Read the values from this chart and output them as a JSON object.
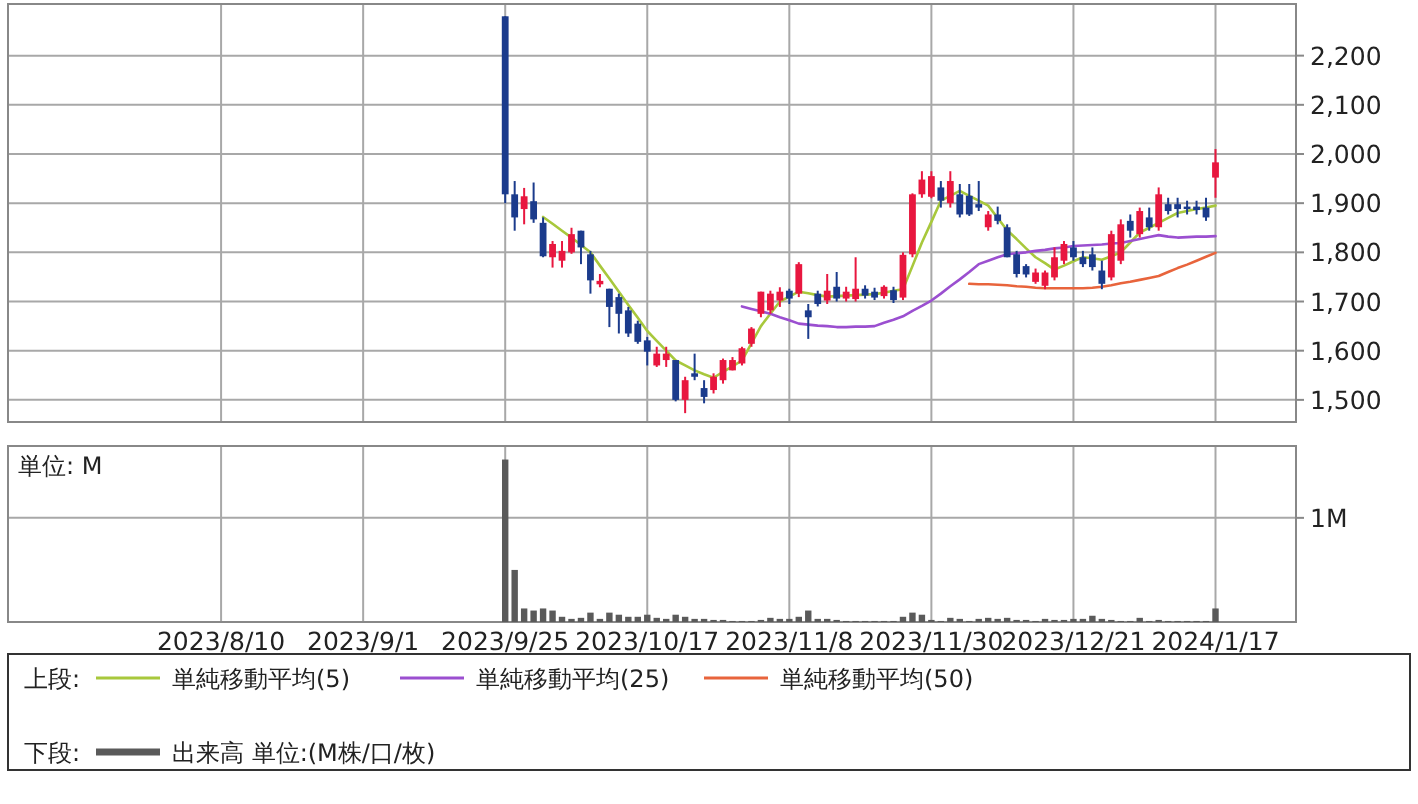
{
  "chart_data": [
    {
      "type": "candlestick",
      "legend": "bottom",
      "legend_title": "上段:",
      "grid": true,
      "categories": [
        null,
        null,
        null,
        null,
        null,
        null,
        null,
        null,
        null,
        null,
        null,
        null,
        null,
        null,
        null,
        null,
        null,
        null,
        null,
        null,
        null,
        null,
        null,
        null,
        null,
        null,
        null,
        null,
        null,
        null,
        null,
        null,
        null,
        null,
        null,
        null,
        null,
        null,
        null,
        null,
        null,
        null,
        null,
        null,
        null,
        null,
        null,
        null,
        null,
        null,
        null,
        null,
        null,
        null,
        null,
        null,
        null,
        null,
        null,
        null,
        null,
        null,
        null,
        null,
        null,
        null,
        null,
        null,
        null,
        null,
        null,
        null,
        null,
        null,
        null,
        null,
        null,
        null,
        null,
        null,
        null,
        null,
        null,
        null,
        null,
        null,
        null,
        null,
        null,
        null,
        null,
        null,
        null,
        null,
        null,
        null,
        null,
        null,
        null,
        null,
        null,
        null,
        null,
        null,
        null,
        null,
        null,
        null,
        null,
        null,
        null,
        null,
        null,
        null,
        null,
        null,
        null,
        null,
        null,
        null,
        null,
        null,
        null,
        null,
        null,
        null,
        null,
        null,
        null,
        null,
        null,
        null,
        null,
        null,
        null,
        null
      ],
      "ohlc": [
        null,
        null,
        null,
        null,
        null,
        null,
        null,
        null,
        null,
        null,
        null,
        null,
        null,
        null,
        null,
        null,
        null,
        null,
        null,
        null,
        null,
        null,
        null,
        null,
        null,
        null,
        null,
        null,
        null,
        null,
        null,
        null,
        null,
        null,
        null,
        null,
        null,
        null,
        null,
        null,
        null,
        null,
        null,
        null,
        null,
        null,
        null,
        null,
        null,
        null,
        null,
        null,
        [
          2280,
          2280,
          1900,
          1918
        ],
        [
          1918,
          1945,
          1844,
          1871
        ],
        [
          1888,
          1931,
          1857,
          1914
        ],
        [
          1904,
          1942,
          1860,
          1867
        ],
        [
          1860,
          1871,
          1790,
          1792
        ],
        [
          1790,
          1823,
          1769,
          1817
        ],
        [
          1783,
          1823,
          1769,
          1803
        ],
        [
          1800,
          1850,
          1797,
          1837
        ],
        [
          1844,
          1844,
          1776,
          1810
        ],
        [
          1796,
          1803,
          1716,
          1743
        ],
        [
          1735,
          1756,
          1729,
          1742
        ],
        [
          1726,
          1726,
          1648,
          1689
        ],
        [
          1709,
          1716,
          1635,
          1675
        ],
        [
          1682,
          1689,
          1628,
          1635
        ],
        [
          1655,
          1661,
          1614,
          1618
        ],
        [
          1621,
          1628,
          1570,
          1598
        ],
        [
          1570,
          1608,
          1567,
          1594
        ],
        [
          1581,
          1608,
          1567,
          1594
        ],
        [
          1581,
          1581,
          1497,
          1500
        ],
        [
          1500,
          1547,
          1473,
          1540
        ],
        [
          1554,
          1594,
          1540,
          1547
        ],
        [
          1524,
          1540,
          1493,
          1506
        ],
        [
          1520,
          1554,
          1513,
          1547
        ],
        [
          1540,
          1584,
          1533,
          1581
        ],
        [
          1560,
          1587,
          1560,
          1581
        ],
        [
          1574,
          1608,
          1570,
          1605
        ],
        [
          1614,
          1648,
          1608,
          1645
        ],
        [
          1675,
          1720,
          1668,
          1720
        ],
        [
          1682,
          1722,
          1675,
          1716
        ],
        [
          1702,
          1729,
          1689,
          1720
        ],
        [
          1722,
          1726,
          1695,
          1706
        ],
        [
          1716,
          1780,
          1709,
          1776
        ],
        [
          1682,
          1695,
          1624,
          1668
        ],
        [
          1716,
          1722,
          1690,
          1695
        ],
        [
          1702,
          1756,
          1695,
          1722
        ],
        [
          1730,
          1760,
          1700,
          1706
        ],
        [
          1706,
          1730,
          1700,
          1720
        ],
        [
          1705,
          1790,
          1700,
          1726
        ],
        [
          1726,
          1733,
          1706,
          1712
        ],
        [
          1720,
          1728,
          1703,
          1708
        ],
        [
          1711,
          1733,
          1706,
          1730
        ],
        [
          1723,
          1730,
          1697,
          1703
        ],
        [
          1708,
          1800,
          1703,
          1795
        ],
        [
          1796,
          1920,
          1790,
          1918
        ],
        [
          1918,
          1965,
          1911,
          1948
        ],
        [
          1913,
          1965,
          1910,
          1955
        ],
        [
          1932,
          1945,
          1891,
          1905
        ],
        [
          1900,
          1965,
          1891,
          1945
        ],
        [
          1918,
          1939,
          1871,
          1877
        ],
        [
          1915,
          1939,
          1874,
          1877
        ],
        [
          1898,
          1945,
          1884,
          1891
        ],
        [
          1851,
          1884,
          1844,
          1877
        ],
        [
          1877,
          1893,
          1857,
          1864
        ],
        [
          1851,
          1857,
          1790,
          1790
        ],
        [
          1796,
          1803,
          1749,
          1756
        ],
        [
          1772,
          1776,
          1749,
          1755
        ],
        [
          1740,
          1767,
          1736,
          1759
        ],
        [
          1732,
          1763,
          1725,
          1759
        ],
        [
          1749,
          1810,
          1743,
          1790
        ],
        [
          1783,
          1823,
          1776,
          1817
        ],
        [
          1810,
          1823,
          1783,
          1790
        ],
        [
          1790,
          1803,
          1770,
          1776
        ],
        [
          1796,
          1810,
          1763,
          1770
        ],
        [
          1763,
          1783,
          1725,
          1736
        ],
        [
          1749,
          1844,
          1743,
          1837
        ],
        [
          1783,
          1867,
          1776,
          1857
        ],
        [
          1864,
          1877,
          1830,
          1844
        ],
        [
          1837,
          1891,
          1830,
          1884
        ],
        [
          1871,
          1891,
          1844,
          1851
        ],
        [
          1851,
          1932,
          1844,
          1918
        ],
        [
          1898,
          1911,
          1877,
          1884
        ],
        [
          1898,
          1911,
          1871,
          1888
        ],
        [
          1893,
          1905,
          1877,
          1888
        ],
        [
          1893,
          1905,
          1877,
          1886
        ],
        [
          1891,
          1911,
          1864,
          1871
        ],
        [
          1952,
          2010,
          1911,
          1983
        ],
        null,
        null,
        null,
        null,
        null,
        null,
        null,
        null
      ],
      "colors": [
        null,
        null,
        null,
        null,
        null,
        null,
        null,
        null,
        null,
        null,
        null,
        null,
        null,
        null,
        null,
        null,
        null,
        null,
        null,
        null,
        null,
        null,
        null,
        null,
        null,
        null,
        null,
        null,
        null,
        null,
        null,
        null,
        null,
        null,
        null,
        null,
        null,
        null,
        null,
        null,
        null,
        null,
        null,
        null,
        null,
        null,
        null,
        null,
        null,
        null,
        null,
        null,
        "#1b3b8c",
        "#1b3b8c",
        "#e8173f",
        "#1b3b8c",
        "#1b3b8c",
        "#e8173f",
        "#e8173f",
        "#e8173f",
        "#1b3b8c",
        "#1b3b8c",
        "#e8173f",
        "#1b3b8c",
        "#1b3b8c",
        "#1b3b8c",
        "#1b3b8c",
        "#1b3b8c",
        "#e8173f",
        "#e8173f",
        "#1b3b8c",
        "#e8173f",
        "#1b3b8c",
        "#1b3b8c",
        "#e8173f",
        "#e8173f",
        "#e8173f",
        "#e8173f",
        "#e8173f",
        "#e8173f",
        "#e8173f",
        "#e8173f",
        "#1b3b8c",
        "#e8173f",
        "#1b3b8c",
        "#1b3b8c",
        "#e8173f",
        "#1b3b8c",
        "#e8173f",
        "#e8173f",
        "#1b3b8c",
        "#1b3b8c",
        "#e8173f",
        "#1b3b8c",
        "#e8173f",
        "#e8173f",
        "#e8173f",
        "#e8173f",
        "#1b3b8c",
        "#e8173f",
        "#1b3b8c",
        "#1b3b8c",
        "#1b3b8c",
        "#e8173f",
        "#1b3b8c",
        "#1b3b8c",
        "#1b3b8c",
        "#1b3b8c",
        "#e8173f",
        "#e8173f",
        "#e8173f",
        "#e8173f",
        "#1b3b8c",
        "#1b3b8c",
        "#1b3b8c",
        "#1b3b8c",
        "#e8173f",
        "#e8173f",
        "#1b3b8c",
        "#e8173f",
        "#1b3b8c",
        "#e8173f",
        "#1b3b8c",
        "#1b3b8c",
        "#1b3b8c",
        "#1b3b8c",
        "#1b3b8c",
        "#e8173f",
        null,
        null,
        null,
        null,
        null,
        null,
        null,
        null
      ],
      "series": [
        {
          "type": "line",
          "name": "単純移動平均(5)",
          "color": "#a8c83c",
          "values": [
            null,
            null,
            null,
            null,
            null,
            null,
            null,
            null,
            null,
            null,
            null,
            null,
            null,
            null,
            null,
            null,
            null,
            null,
            null,
            null,
            null,
            null,
            null,
            null,
            null,
            null,
            null,
            null,
            null,
            null,
            null,
            null,
            null,
            null,
            null,
            null,
            null,
            null,
            null,
            null,
            null,
            null,
            null,
            null,
            null,
            null,
            null,
            null,
            null,
            null,
            null,
            null,
            null,
            null,
            null,
            null,
            1872,
            1858,
            1844,
            1830,
            1815,
            1800,
            1773,
            1747,
            1720,
            1693,
            1667,
            1640,
            1620,
            1600,
            1580,
            1570,
            1560,
            1552,
            1545,
            1557,
            1568,
            1580,
            1615,
            1650,
            1675,
            1700,
            1710,
            1720,
            1717,
            1713,
            1710,
            1711,
            1712,
            1713,
            1714,
            1715,
            1718,
            1722,
            1725,
            1772,
            1820,
            1862,
            1905,
            1915,
            1925,
            1915,
            1905,
            1895,
            1870,
            1845,
            1827,
            1808,
            1790,
            1778,
            1765,
            1773,
            1782,
            1790,
            1788,
            1785,
            1792,
            1800,
            1820,
            1840,
            1850,
            1860,
            1870,
            1880,
            1884,
            1888,
            1891,
            1895,
            null,
            null,
            null,
            null,
            null,
            null,
            null,
            null
          ]
        },
        {
          "type": "line",
          "name": "単純移動平均(25)",
          "color": "#9b4fd0",
          "values": [
            null,
            null,
            null,
            null,
            null,
            null,
            null,
            null,
            null,
            null,
            null,
            null,
            null,
            null,
            null,
            null,
            null,
            null,
            null,
            null,
            null,
            null,
            null,
            null,
            null,
            null,
            null,
            null,
            null,
            null,
            null,
            null,
            null,
            null,
            null,
            null,
            null,
            null,
            null,
            null,
            null,
            null,
            null,
            null,
            null,
            null,
            null,
            null,
            null,
            null,
            null,
            null,
            null,
            null,
            null,
            null,
            null,
            null,
            null,
            null,
            null,
            null,
            null,
            null,
            null,
            null,
            null,
            null,
            null,
            null,
            null,
            null,
            null,
            null,
            null,
            null,
            null,
            1690,
            1685,
            1680,
            1675,
            1668,
            1662,
            1655,
            1653,
            1651,
            1650,
            1648,
            1648,
            1649,
            1649,
            1650,
            1657,
            1663,
            1670,
            1681,
            1691,
            1702,
            1716,
            1731,
            1745,
            1760,
            1776,
            1783,
            1790,
            1796,
            1798,
            1800,
            1803,
            1805,
            1808,
            1810,
            1813,
            1814,
            1815,
            1816,
            1818,
            1819,
            1823,
            1827,
            1831,
            1835,
            1832,
            1830,
            1831,
            1832,
            1832,
            1833,
            null,
            null,
            null,
            null,
            null,
            null,
            null,
            null
          ]
        },
        {
          "type": "line",
          "name": "単純移動平均(50)",
          "color": "#e8643c",
          "values": [
            null,
            null,
            null,
            null,
            null,
            null,
            null,
            null,
            null,
            null,
            null,
            null,
            null,
            null,
            null,
            null,
            null,
            null,
            null,
            null,
            null,
            null,
            null,
            null,
            null,
            null,
            null,
            null,
            null,
            null,
            null,
            null,
            null,
            null,
            null,
            null,
            null,
            null,
            null,
            null,
            null,
            null,
            null,
            null,
            null,
            null,
            null,
            null,
            null,
            null,
            null,
            null,
            null,
            null,
            null,
            null,
            null,
            null,
            null,
            null,
            null,
            null,
            null,
            null,
            null,
            null,
            null,
            null,
            null,
            null,
            null,
            null,
            null,
            null,
            null,
            null,
            null,
            null,
            null,
            null,
            null,
            null,
            null,
            null,
            null,
            null,
            null,
            null,
            null,
            null,
            null,
            null,
            null,
            null,
            null,
            null,
            null,
            null,
            null,
            null,
            null,
            1736,
            1735,
            1735,
            1734,
            1733,
            1731,
            1730,
            1728,
            1727,
            1727,
            1727,
            1727,
            1727,
            1728,
            1730,
            1733,
            1737,
            1740,
            1744,
            1748,
            1752,
            1760,
            1768,
            1775,
            1783,
            1791,
            1799,
            null,
            null,
            null,
            null,
            null,
            null,
            null,
            null
          ]
        }
      ],
      "ylim": [
        1455,
        2305
      ],
      "yticks": [
        {
          "value": 1500,
          "label": "1,500"
        },
        {
          "value": 1600,
          "label": "1,600"
        },
        {
          "value": 1700,
          "label": "1,700"
        },
        {
          "value": 1800,
          "label": "1,800"
        },
        {
          "value": 1900,
          "label": "1,900"
        },
        {
          "value": 2000,
          "label": "2,000"
        },
        {
          "value": 2100,
          "label": "2,100"
        },
        {
          "value": 2200,
          "label": "2,200"
        }
      ]
    },
    {
      "type": "bar",
      "legend": "bottom",
      "legend_title": "下段:",
      "grid": true,
      "annotations": [
        "単位: M"
      ],
      "categories": [
        null,
        null,
        null,
        null,
        null,
        null,
        null,
        null,
        null,
        null,
        null,
        null,
        null,
        null,
        null,
        null,
        null,
        null,
        null,
        null,
        null,
        null,
        "2023/8/10",
        null,
        null,
        null,
        null,
        null,
        null,
        null,
        null,
        null,
        null,
        null,
        null,
        null,
        null,
        "2023/9/1",
        null,
        null,
        null,
        null,
        null,
        null,
        null,
        null,
        null,
        null,
        null,
        null,
        null,
        null,
        "2023/9/25",
        null,
        null,
        null,
        null,
        null,
        null,
        null,
        null,
        null,
        null,
        null,
        null,
        null,
        null,
        "2023/10/17",
        null,
        null,
        null,
        null,
        null,
        null,
        null,
        null,
        null,
        null,
        null,
        null,
        null,
        null,
        "2023/11/8",
        null,
        null,
        null,
        null,
        null,
        null,
        null,
        null,
        null,
        null,
        null,
        null,
        null,
        null,
        "2023/11/30",
        null,
        null,
        null,
        null,
        null,
        null,
        null,
        null,
        null,
        null,
        null,
        null,
        null,
        null,
        "2023/12/21",
        null,
        null,
        null,
        null,
        null,
        null,
        null,
        null,
        null,
        null,
        null,
        null,
        null,
        null,
        "2024/1/17",
        null,
        null,
        null,
        null,
        null,
        null,
        null,
        null
      ],
      "series": [
        {
          "name": "出来高 単位:(M株/口/枚)",
          "color": "#5a5a5a",
          "values": [
            null,
            null,
            null,
            null,
            null,
            null,
            null,
            null,
            null,
            null,
            null,
            null,
            null,
            null,
            null,
            null,
            null,
            null,
            null,
            null,
            null,
            null,
            null,
            null,
            null,
            null,
            null,
            null,
            null,
            null,
            null,
            null,
            null,
            null,
            null,
            null,
            null,
            null,
            null,
            null,
            null,
            null,
            null,
            null,
            null,
            null,
            null,
            null,
            null,
            null,
            null,
            null,
            1.56,
            0.5,
            0.13,
            0.11,
            0.13,
            0.11,
            0.05,
            0.03,
            0.04,
            0.09,
            0.03,
            0.09,
            0.07,
            0.05,
            0.05,
            0.07,
            0.04,
            0.03,
            0.07,
            0.05,
            0.03,
            0.03,
            0.02,
            0.02,
            0.01,
            0.01,
            0.01,
            0.02,
            0.04,
            0.03,
            0.03,
            0.05,
            0.11,
            0.03,
            0.03,
            0.02,
            0.01,
            0.01,
            0.01,
            0.01,
            0.01,
            0.01,
            0.05,
            0.09,
            0.07,
            0.02,
            0.01,
            0.04,
            0.03,
            0.01,
            0.03,
            0.04,
            0.03,
            0.04,
            0.02,
            0.02,
            0.01,
            0.03,
            0.02,
            0.02,
            0.03,
            0.03,
            0.06,
            0.03,
            0.02,
            0.01,
            0.01,
            0.04,
            0.01,
            0.02,
            0.01,
            0.01,
            0.01,
            0.01,
            0.01,
            0.13,
            null,
            null,
            null,
            null,
            null,
            null,
            null,
            null
          ]
        }
      ],
      "ylim": [
        0,
        1.69
      ],
      "yticks": [
        {
          "value": 1,
          "label": "1M"
        }
      ]
    }
  ]
}
